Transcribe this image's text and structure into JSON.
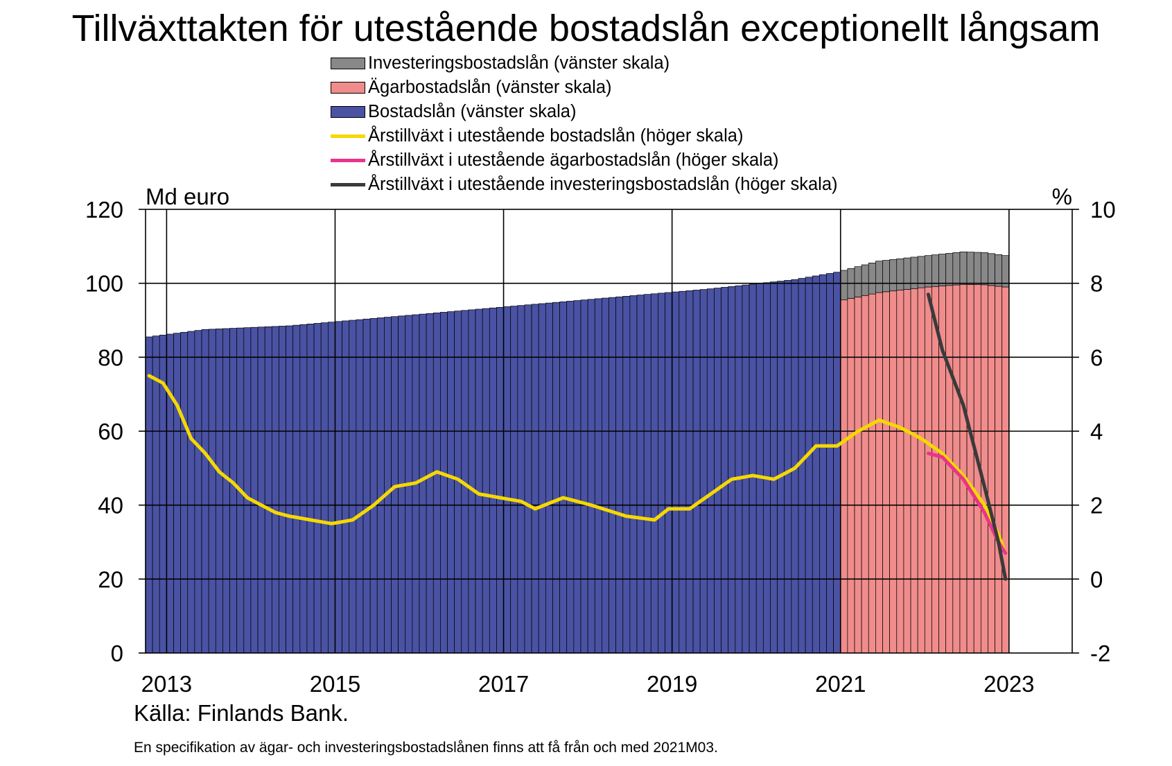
{
  "chart_data": {
    "type": "bar",
    "title": "Tillväxttakten för utestående bostadslån exceptionellt långsam",
    "left_axis_label": "Md euro",
    "right_axis_label": "%",
    "left_ylim": [
      0,
      120
    ],
    "left_ticks": [
      "0",
      "20",
      "40",
      "60",
      "80",
      "100",
      "120"
    ],
    "right_ylim": [
      -2,
      10
    ],
    "right_ticks": [
      "-2",
      "0",
      "2",
      "4",
      "6",
      "8",
      "10"
    ],
    "x_ticks": [
      "2013",
      "2015",
      "2017",
      "2019",
      "2021",
      "2023"
    ],
    "x_range": [
      "2012-10",
      "2023-10"
    ],
    "grid": true,
    "legend_position": "top",
    "colors": {
      "bostadslan": "#4a52a3",
      "agarbostadslan": "#f08c8c",
      "investeringsbostadslan": "#888888",
      "growth_total": "#f5d800",
      "growth_agar": "#e8348c",
      "growth_invest": "#3a3a3a"
    },
    "legend": [
      {
        "key": "investeringsbostadslan",
        "kind": "bar",
        "label": "Investeringsbostadslån (vänster skala)"
      },
      {
        "key": "agarbostadslan",
        "kind": "bar",
        "label": "Ägarbostadslån (vänster skala)"
      },
      {
        "key": "bostadslan",
        "kind": "bar",
        "label": "Bostadslån (vänster skala)"
      },
      {
        "key": "growth_total",
        "kind": "line",
        "label": "Årstillväxt i utestående bostadslån (höger skala)"
      },
      {
        "key": "growth_agar",
        "kind": "line",
        "label": "Årstillväxt i utestående ägarbostadslån (höger skala)"
      },
      {
        "key": "growth_invest",
        "kind": "line",
        "label": "Årstillväxt i utestående investeringsbostadslån (höger skala)"
      }
    ],
    "series": {
      "bostadslan_total_keypoints": [
        [
          "2012-10",
          85.5
        ],
        [
          "2013-06",
          87.5
        ],
        [
          "2014-06",
          88.5
        ],
        [
          "2015-06",
          90.5
        ],
        [
          "2016-06",
          92.5
        ],
        [
          "2017-06",
          94.5
        ],
        [
          "2018-06",
          96.5
        ],
        [
          "2019-06",
          98.5
        ],
        [
          "2020-06",
          101.0
        ],
        [
          "2020-12",
          103.0
        ]
      ],
      "total_after_split_keypoints": [
        [
          "2021-01",
          103.5
        ],
        [
          "2021-06",
          106.0
        ],
        [
          "2022-01",
          107.5
        ],
        [
          "2022-06",
          108.5
        ],
        [
          "2022-09",
          108.3
        ],
        [
          "2022-12",
          107.5
        ]
      ],
      "agarbostadslan_keypoints": [
        [
          "2021-01",
          95.5
        ],
        [
          "2021-06",
          97.5
        ],
        [
          "2022-01",
          99.0
        ],
        [
          "2022-06",
          99.7
        ],
        [
          "2022-09",
          99.6
        ],
        [
          "2022-12",
          99.0
        ]
      ],
      "growth_total_keypoints": [
        [
          "2012-10",
          5.5
        ],
        [
          "2012-12",
          5.3
        ],
        [
          "2013-02",
          4.7
        ],
        [
          "2013-04",
          3.8
        ],
        [
          "2013-06",
          3.4
        ],
        [
          "2013-08",
          2.9
        ],
        [
          "2013-10",
          2.6
        ],
        [
          "2013-12",
          2.2
        ],
        [
          "2014-02",
          2.0
        ],
        [
          "2014-04",
          1.8
        ],
        [
          "2014-06",
          1.7
        ],
        [
          "2014-09",
          1.6
        ],
        [
          "2014-12",
          1.5
        ],
        [
          "2015-03",
          1.6
        ],
        [
          "2015-06",
          2.0
        ],
        [
          "2015-09",
          2.5
        ],
        [
          "2015-12",
          2.6
        ],
        [
          "2016-03",
          2.9
        ],
        [
          "2016-06",
          2.7
        ],
        [
          "2016-09",
          2.3
        ],
        [
          "2016-12",
          2.2
        ],
        [
          "2017-03",
          2.1
        ],
        [
          "2017-05",
          1.9
        ],
        [
          "2017-09",
          2.2
        ],
        [
          "2018-01",
          2.0
        ],
        [
          "2018-06",
          1.7
        ],
        [
          "2018-10",
          1.6
        ],
        [
          "2018-12",
          1.9
        ],
        [
          "2019-03",
          1.9
        ],
        [
          "2019-06",
          2.3
        ],
        [
          "2019-09",
          2.7
        ],
        [
          "2019-12",
          2.8
        ],
        [
          "2020-03",
          2.7
        ],
        [
          "2020-06",
          3.0
        ],
        [
          "2020-09",
          3.6
        ],
        [
          "2020-12",
          3.6
        ],
        [
          "2021-03",
          4.0
        ],
        [
          "2021-06",
          4.3
        ],
        [
          "2021-09",
          4.1
        ],
        [
          "2021-12",
          3.8
        ],
        [
          "2022-03",
          3.4
        ],
        [
          "2022-06",
          2.8
        ],
        [
          "2022-09",
          2.0
        ],
        [
          "2022-11",
          1.2
        ],
        [
          "2022-12",
          0.7
        ]
      ],
      "growth_agar_keypoints": [
        [
          "2022-01",
          3.4
        ],
        [
          "2022-03",
          3.3
        ],
        [
          "2022-06",
          2.7
        ],
        [
          "2022-09",
          1.8
        ],
        [
          "2022-11",
          1.0
        ],
        [
          "2022-12",
          0.7
        ]
      ],
      "growth_invest_keypoints": [
        [
          "2022-01",
          7.7
        ],
        [
          "2022-03",
          6.2
        ],
        [
          "2022-06",
          4.7
        ],
        [
          "2022-09",
          2.5
        ],
        [
          "2022-11",
          1.0
        ],
        [
          "2022-12",
          0.0
        ]
      ]
    }
  },
  "source": "Källa: Finlands Bank.",
  "footnote": "En specifikation av ägar- och investeringsbostadslånen finns att få från och med 2021M03."
}
